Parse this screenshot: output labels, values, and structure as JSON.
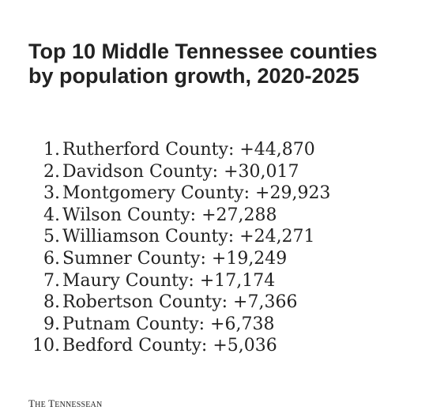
{
  "title": {
    "line1": "Top 10 Middle Tennessee counties",
    "line2": "by population growth, 2020-2025"
  },
  "rankings": [
    {
      "rank": "1.",
      "text": "Rutherford County: +44,870"
    },
    {
      "rank": "2.",
      "text": "Davidson County: +30,017"
    },
    {
      "rank": "3.",
      "text": "Montgomery County: +29,923"
    },
    {
      "rank": "4.",
      "text": "Wilson County: +27,288"
    },
    {
      "rank": "5.",
      "text": "Williamson County: +24,271"
    },
    {
      "rank": "6.",
      "text": "Sumner County: +19,249"
    },
    {
      "rank": "7.",
      "text": "Maury County: +17,174"
    },
    {
      "rank": "8.",
      "text": "Robertson County: +7,366"
    },
    {
      "rank": "9.",
      "text": "Putnam County: +6,738"
    },
    {
      "rank": "10.",
      "text": "Bedford County: +5,036"
    }
  ],
  "brand": {
    "the": "THE",
    "name": "TENNESSEAN"
  }
}
